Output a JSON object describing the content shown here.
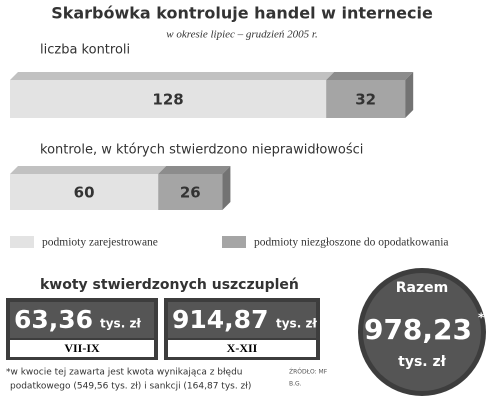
{
  "title": "Skarbówka kontroluje handel w internecie",
  "subtitle": "w okresie lipiec – grudzień 2005 r.",
  "chart_data": {
    "type": "bar",
    "orientation": "horizontal",
    "stacked": true,
    "categories": [
      "liczba kontroli",
      "kontrole, w których stwierdzono nieprawidłowości"
    ],
    "series": [
      {
        "name": "podmioty zarejestrowane",
        "color": "#e3e3e3",
        "values": [
          128,
          60
        ]
      },
      {
        "name": "podmioty niezgłoszone do opodatkowania",
        "color": "#a5a5a5",
        "values": [
          32,
          26
        ]
      }
    ]
  },
  "amounts": {
    "title": "kwoty stwierdzonych uszczupleń",
    "items": [
      {
        "value": "63,36",
        "unit": "tys. zł",
        "period": "VII-IX"
      },
      {
        "value": "914,87",
        "unit": "tys. zł",
        "period": "X-XII"
      }
    ],
    "total": {
      "label": "Razem",
      "value": "978,23",
      "star": "*",
      "unit": "tys. zł"
    }
  },
  "footnote": [
    "*w kwocie tej zawarta jest kwota wynikająca z błędu",
    "podatkowego (549,56 tys. zł) i sankcji (164,87 tys. zł)"
  ],
  "source": "ŹRÓDŁO: MF",
  "author": "B.G."
}
